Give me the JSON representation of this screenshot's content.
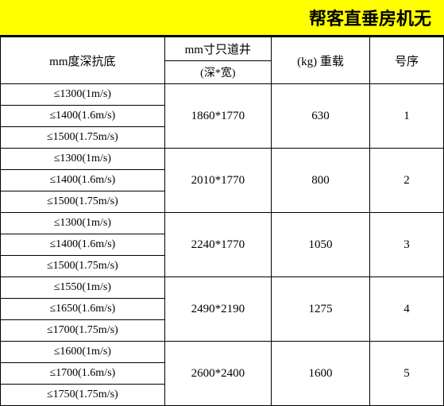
{
  "title": "帮客直垂房机无",
  "header": {
    "depth": "mm度深抗底",
    "shaft_top": "mm寸只道井",
    "shaft_sub": "(深*宽)",
    "load": "(kg) 重载",
    "no": "号序"
  },
  "rows": [
    {
      "no": "1",
      "load": "630",
      "shaft": "1860*1770",
      "depths": [
        "≤1300(1m/s)",
        "≤1400(1.6m/s)",
        "≤1500(1.75m/s)"
      ]
    },
    {
      "no": "2",
      "load": "800",
      "shaft": "2010*1770",
      "depths": [
        "≤1300(1m/s)",
        "≤1400(1.6m/s)",
        "≤1500(1.75m/s)"
      ]
    },
    {
      "no": "3",
      "load": "1050",
      "shaft": "2240*1770",
      "depths": [
        "≤1300(1m/s)",
        "≤1400(1.6m/s)",
        "≤1500(1.75m/s)"
      ]
    },
    {
      "no": "4",
      "load": "1275",
      "shaft": "2490*2190",
      "depths": [
        "≤1550(1m/s)",
        "≤1650(1.6m/s)",
        "≤1700(1.75m/s)"
      ]
    },
    {
      "no": "5",
      "load": "1600",
      "shaft": "2600*2400",
      "depths": [
        "≤1600(1m/s)",
        "≤1700(1.6m/s)",
        "≤1750(1.75m/s)"
      ]
    }
  ],
  "colors": {
    "title_bg": "#ffff00",
    "border": "#000000",
    "text": "#000000",
    "bg": "#ffffff"
  }
}
